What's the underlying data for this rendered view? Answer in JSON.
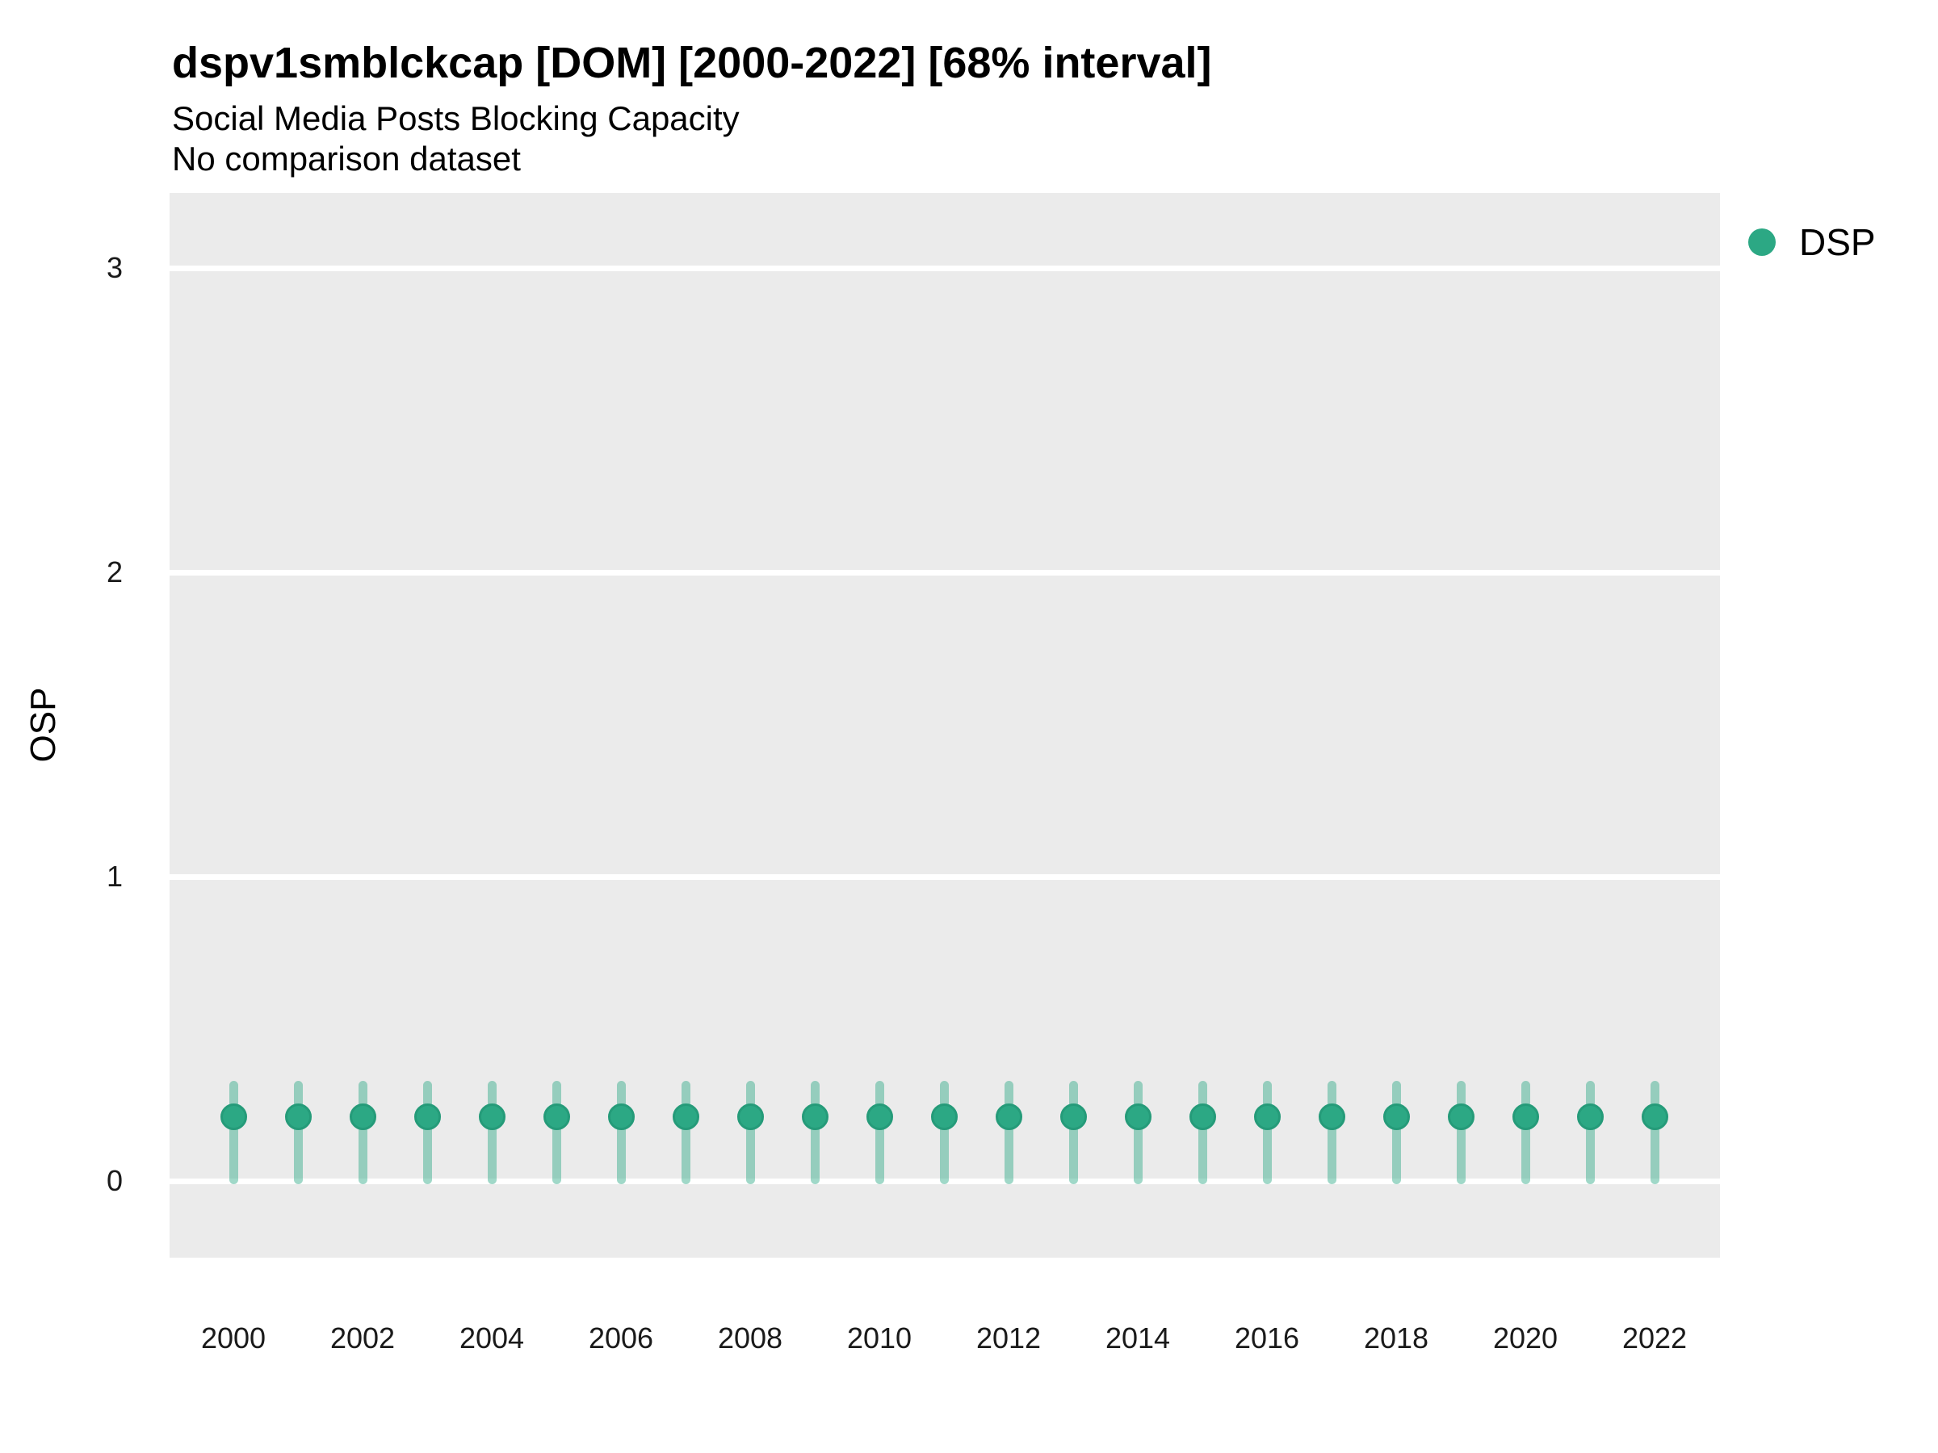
{
  "page": {
    "background": "#ffffff"
  },
  "chart_data": {
    "type": "scatter",
    "title": "dspv1smblckcap [DOM] [2000-2022] [68% interval]",
    "subtitle": "Social Media Posts Blocking Capacity",
    "annotation": "No comparison dataset",
    "interval_label": "68% interval",
    "xlabel": "",
    "ylabel": "OSP",
    "x": [
      2000,
      2001,
      2002,
      2003,
      2004,
      2005,
      2006,
      2007,
      2008,
      2009,
      2010,
      2011,
      2012,
      2013,
      2014,
      2015,
      2016,
      2017,
      2018,
      2019,
      2020,
      2021,
      2022
    ],
    "series": [
      {
        "name": "DSP",
        "color": "#2ca884",
        "point_border_color": "#259b79",
        "interval_alpha": 0.45,
        "values": [
          0.21,
          0.21,
          0.21,
          0.21,
          0.21,
          0.21,
          0.21,
          0.21,
          0.21,
          0.21,
          0.21,
          0.21,
          0.21,
          0.21,
          0.21,
          0.21,
          0.21,
          0.21,
          0.21,
          0.21,
          0.21,
          0.21,
          0.21
        ],
        "lower": [
          -0.01,
          -0.01,
          -0.01,
          -0.01,
          -0.01,
          -0.01,
          -0.01,
          -0.01,
          -0.01,
          -0.01,
          -0.01,
          -0.01,
          -0.01,
          -0.01,
          -0.01,
          -0.01,
          -0.01,
          -0.01,
          -0.01,
          -0.01,
          -0.01,
          -0.01,
          -0.01
        ],
        "upper": [
          0.33,
          0.33,
          0.33,
          0.33,
          0.33,
          0.33,
          0.33,
          0.33,
          0.33,
          0.33,
          0.33,
          0.33,
          0.33,
          0.33,
          0.33,
          0.33,
          0.33,
          0.33,
          0.33,
          0.33,
          0.33,
          0.33,
          0.33
        ]
      }
    ],
    "ylim": [
      -0.25,
      3.25
    ],
    "y_ticks": [
      0,
      1,
      2,
      3
    ],
    "x_tick_years": [
      2000,
      2002,
      2004,
      2006,
      2008,
      2010,
      2012,
      2014,
      2016,
      2018,
      2020,
      2022
    ],
    "grid": "major-horizontal-only",
    "gridline_color": "#ffffff",
    "panel_background": "#ebebeb",
    "legend_position": "top-right"
  },
  "legend": {
    "label": "DSP",
    "dot_color": "#2ca884"
  }
}
